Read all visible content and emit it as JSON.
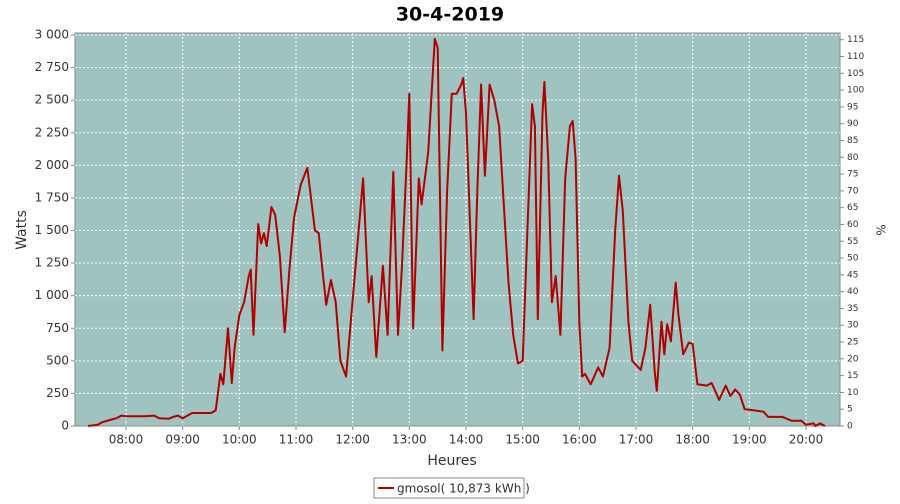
{
  "chart_data": {
    "type": "line",
    "title": "30-4-2019",
    "x_label": "Heures",
    "y_label": "Watts",
    "y2_label": "%",
    "x": [
      "07:20",
      "07:30",
      "07:35",
      "07:40",
      "07:45",
      "07:50",
      "07:55",
      "08:00",
      "08:10",
      "08:20",
      "08:30",
      "08:35",
      "08:45",
      "08:50",
      "08:55",
      "09:00",
      "09:05",
      "09:10",
      "09:20",
      "09:30",
      "09:35",
      "09:40",
      "09:43",
      "09:48",
      "09:52",
      "09:55",
      "10:00",
      "10:05",
      "10:10",
      "10:12",
      "10:15",
      "10:20",
      "10:23",
      "10:26",
      "10:29",
      "10:34",
      "10:38",
      "10:43",
      "10:48",
      "10:53",
      "10:58",
      "11:05",
      "11:12",
      "11:15",
      "11:20",
      "11:24",
      "11:28",
      "11:32",
      "11:37",
      "11:42",
      "11:47",
      "11:53",
      "11:58",
      "12:11",
      "12:17",
      "12:20",
      "12:25",
      "12:32",
      "12:37",
      "12:43",
      "12:48",
      "12:52",
      "12:57",
      "13:00",
      "13:04",
      "13:10",
      "13:13",
      "13:20",
      "13:27",
      "13:30",
      "13:35",
      "13:40",
      "13:45",
      "13:50",
      "13:55",
      "13:57",
      "14:00",
      "14:08",
      "14:12",
      "14:16",
      "14:20",
      "14:25",
      "14:30",
      "14:35",
      "14:45",
      "14:50",
      "14:55",
      "15:00",
      "15:05",
      "15:10",
      "15:13",
      "15:16",
      "15:21",
      "15:23",
      "15:27",
      "15:31",
      "15:35",
      "15:40",
      "15:45",
      "15:50",
      "15:53",
      "15:56",
      "16:00",
      "16:03",
      "16:06",
      "16:12",
      "16:20",
      "16:25",
      "16:32",
      "16:38",
      "16:42",
      "16:46",
      "16:52",
      "16:56",
      "17:05",
      "17:10",
      "17:15",
      "17:20",
      "17:22",
      "17:27",
      "17:30",
      "17:33",
      "17:37",
      "17:42",
      "17:45",
      "17:50",
      "17:56",
      "18:00",
      "18:05",
      "18:15",
      "18:20",
      "18:25",
      "18:28",
      "18:35",
      "18:40",
      "18:45",
      "18:50",
      "18:55",
      "19:05",
      "19:15",
      "19:20",
      "19:35",
      "19:45",
      "19:55",
      "20:00",
      "20:08",
      "20:10",
      "20:15",
      "20:20"
    ],
    "series": [
      {
        "name": "gmosol( 10,873 kWh )",
        "color": "#b00000",
        "values": [
          0,
          10,
          30,
          40,
          50,
          60,
          80,
          75,
          75,
          75,
          80,
          60,
          55,
          70,
          80,
          60,
          80,
          100,
          100,
          100,
          120,
          400,
          320,
          750,
          330,
          600,
          850,
          950,
          1150,
          1200,
          700,
          1550,
          1400,
          1480,
          1380,
          1680,
          1620,
          1300,
          720,
          1200,
          1600,
          1850,
          1980,
          1800,
          1500,
          1480,
          1200,
          930,
          1120,
          950,
          500,
          380,
          800,
          1900,
          950,
          1150,
          530,
          1230,
          700,
          1950,
          700,
          1200,
          2000,
          2550,
          750,
          1900,
          1700,
          2100,
          2970,
          2900,
          580,
          1800,
          2550,
          2550,
          2620,
          2670,
          2400,
          820,
          1800,
          2620,
          1920,
          2620,
          2500,
          2300,
          1100,
          700,
          480,
          500,
          1500,
          2470,
          2300,
          820,
          2400,
          2640,
          2050,
          950,
          1150,
          700,
          1900,
          2300,
          2340,
          2050,
          800,
          380,
          400,
          320,
          450,
          380,
          600,
          1500,
          1920,
          1650,
          800,
          500,
          430,
          600,
          930,
          400,
          270,
          800,
          550,
          780,
          650,
          1100,
          850,
          550,
          640,
          630,
          320,
          310,
          330,
          250,
          200,
          310,
          230,
          280,
          240,
          130,
          120,
          110,
          70,
          70,
          40,
          40,
          10,
          20,
          0,
          20,
          0
        ]
      }
    ],
    "xlim": [
      "07:06",
      "20:36"
    ],
    "xticks": [
      "08:00",
      "09:00",
      "10:00",
      "11:00",
      "12:00",
      "13:00",
      "14:00",
      "15:00",
      "16:00",
      "17:00",
      "18:00",
      "19:00",
      "20:00"
    ],
    "ylim": [
      0,
      3000
    ],
    "yticks": [
      0,
      250,
      500,
      750,
      {
        "value": 1000,
        "label": "1 000"
      },
      {
        "value": 1250,
        "label": "1 250"
      },
      {
        "value": 1500,
        "label": "1 500"
      },
      {
        "value": 1750,
        "label": "1 750"
      },
      {
        "value": 2000,
        "label": "2 000"
      },
      {
        "value": 2250,
        "label": "2 250"
      },
      {
        "value": 2500,
        "label": "2 500"
      },
      {
        "value": 2750,
        "label": "2 750"
      },
      {
        "value": 3000,
        "label": "3 000"
      }
    ],
    "y2lim": [
      0,
      117
    ],
    "y2ticks": [
      0,
      5,
      10,
      15,
      20,
      25,
      30,
      35,
      40,
      45,
      50,
      55,
      60,
      65,
      70,
      75,
      80,
      85,
      90,
      95,
      100,
      105,
      110,
      115
    ],
    "grid": true,
    "background": "#9fc3c1"
  }
}
